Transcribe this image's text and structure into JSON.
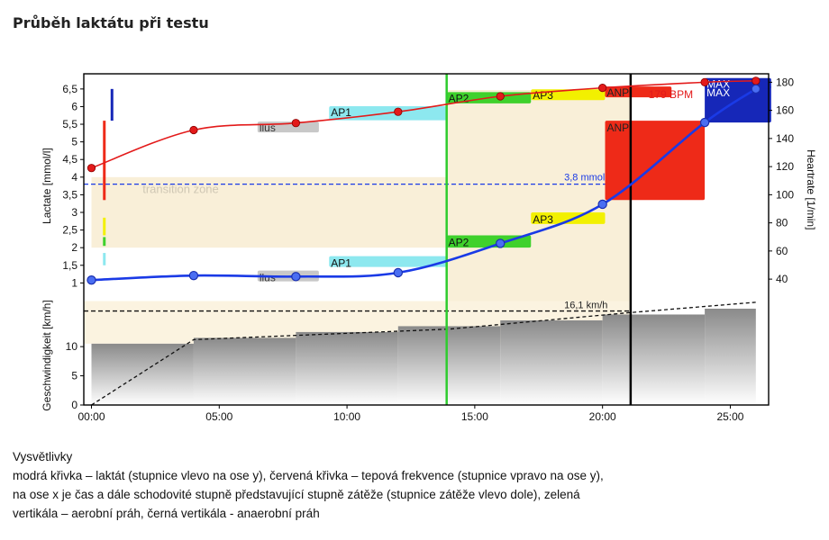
{
  "page": {
    "title": "Průběh laktátu při testu",
    "legend": {
      "heading": "Vysvětlivky",
      "lines": [
        "modrá křivka – laktát (stupnice vlevo na ose y), červená křivka – tepová frekvence (stupnice vpravo na ose y),",
        "na ose x je čas a dále schodovité stupně představující stupně zátěže (stupnice zátěže vlevo dole), zelená",
        "vertikála – aerobní práh, černá vertikála - anaerobní práh"
      ]
    }
  },
  "chart_data": {
    "type": "line",
    "x_axis": {
      "ticks": [
        "00:00",
        "05:00",
        "10:00",
        "15:00",
        "20:00",
        "25:00"
      ],
      "tick_values_min": [
        0,
        5,
        10,
        15,
        20,
        25
      ],
      "range_min": [
        -0.3,
        26.5
      ]
    },
    "lactate_axis": {
      "label": "Lactate [mmol/l]",
      "ticks": [
        "1",
        "1,5",
        "2",
        "2,5",
        "3",
        "3,5",
        "4",
        "4,5",
        "5",
        "5,5",
        "6",
        "6,5"
      ],
      "tick_values": [
        1,
        1.5,
        2,
        2.5,
        3,
        3.5,
        4,
        4.5,
        5,
        5.5,
        6,
        6.5
      ],
      "range": [
        0.55,
        6.93
      ]
    },
    "heartrate_axis": {
      "label": "Heartrate [1/min]",
      "ticks": [
        "40",
        "60",
        "80",
        "100",
        "120",
        "140",
        "160",
        "180"
      ],
      "tick_values": [
        40,
        60,
        80,
        100,
        120,
        140,
        160,
        180
      ],
      "range": [
        26,
        186
      ]
    },
    "speed_axis": {
      "label": "Geschwindigkeit [km/h]",
      "ticks": [
        "0",
        "5",
        "10"
      ],
      "tick_values": [
        0,
        5,
        10
      ],
      "range": [
        0,
        18.5
      ]
    },
    "lactate_series": {
      "color": "#1a3ae6",
      "points": [
        [
          0,
          1.08
        ],
        [
          4,
          1.21
        ],
        [
          8,
          1.18
        ],
        [
          12,
          1.29
        ],
        [
          16,
          2.12
        ],
        [
          20,
          3.23
        ],
        [
          24,
          5.55
        ],
        [
          26,
          6.5
        ]
      ]
    },
    "heartrate_series": {
      "color": "#e31a1a",
      "points": [
        [
          0,
          119
        ],
        [
          4,
          146
        ],
        [
          8,
          151
        ],
        [
          12,
          159
        ],
        [
          16,
          170
        ],
        [
          20,
          176
        ],
        [
          24,
          180
        ],
        [
          26,
          181
        ]
      ]
    },
    "speed_steps": {
      "boundaries_min": [
        0,
        4,
        8,
        12,
        16,
        20,
        24,
        26
      ],
      "speeds_kmh": [
        10.5,
        11.5,
        12.5,
        13.5,
        14.5,
        15.5,
        16.5,
        17.5
      ]
    },
    "speed_ramp": [
      [
        0,
        0
      ],
      [
        4,
        11.2
      ],
      [
        14,
        13.0
      ],
      [
        21,
        15.8
      ],
      [
        26,
        17.6
      ]
    ],
    "aerobic_threshold_min": 13.9,
    "anaerobic_threshold_min": 21.1,
    "transition_zone": {
      "label": "transition zone",
      "lactate_range": [
        2.0,
        4.0
      ],
      "x_range_min": [
        0,
        13.9
      ]
    },
    "threshold_zone": {
      "x_range_min": [
        13.9,
        21.1
      ]
    },
    "lactate_reference": {
      "label": "3,8 mmol",
      "value": 3.8
    },
    "speed_reference": {
      "label": "16,1 km/h",
      "value": 16.1
    },
    "heartrate_reference": {
      "label": "179 BPM",
      "value": 179
    },
    "zones": [
      {
        "label": "llus",
        "color": "#c8c8c8",
        "lactate_x": [
          6.5,
          8.9
        ],
        "lactate_y": [
          1.35,
          1.24
        ],
        "hr_x": [
          6.5,
          8.9
        ],
        "hr_y": [
          152,
          147
        ]
      },
      {
        "label": "AP1",
        "color": "#8de8ef",
        "lactate_x": [
          9.3,
          13.9
        ],
        "lactate_y": [
          1.76,
          1.58
        ],
        "hr_x": [
          9.3,
          13.9
        ],
        "hr_y": [
          163,
          153
        ]
      },
      {
        "label": "AP2",
        "color": "#3fd12c",
        "lactate_x": [
          13.9,
          17.2
        ],
        "lactate_y": [
          2.35,
          2.0
        ],
        "hr_x": [
          13.9,
          17.2
        ],
        "hr_y": [
          173,
          165
        ]
      },
      {
        "label": "AP3",
        "color": "#f2f000",
        "lactate_x": [
          17.2,
          20.1
        ],
        "lactate_y": [
          3.0,
          2.67
        ],
        "hr_x": [
          17.2,
          20.1
        ],
        "hr_y": [
          175,
          168
        ]
      },
      {
        "label": "ANP",
        "color": "#ee2a18",
        "lactate_x": [
          20.1,
          24.0
        ],
        "lactate_y": [
          5.6,
          3.35
        ],
        "hr_x": [
          20.1,
          22.7
        ],
        "hr_y": [
          177,
          175
        ]
      },
      {
        "label": "MAX",
        "color": "#1627b8",
        "lactate_x": [
          24.0,
          26.6
        ],
        "lactate_y": [
          6.6,
          5.55
        ],
        "hr_x": [
          24.0,
          26.6
        ],
        "hr_y": [
          183,
          178
        ]
      }
    ],
    "left_color_bar": [
      {
        "color": "#8de8ef",
        "lactate": [
          1.5,
          1.85
        ]
      },
      {
        "color": "#3fd12c",
        "lactate": [
          2.05,
          2.3
        ]
      },
      {
        "color": "#f2f000",
        "lactate": [
          2.35,
          2.85
        ]
      },
      {
        "color": "#ee2a18",
        "lactate": [
          3.35,
          5.6
        ]
      },
      {
        "color": "#1627b8",
        "lactate": [
          5.6,
          6.5
        ]
      }
    ]
  }
}
